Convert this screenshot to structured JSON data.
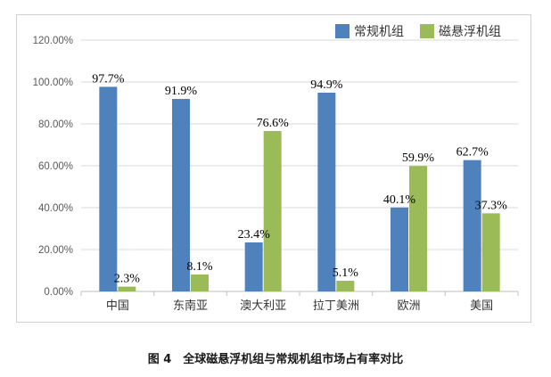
{
  "chart_data": {
    "type": "bar",
    "categories": [
      "中国",
      "东南亚",
      "澳大利亚",
      "拉丁美洲",
      "欧洲",
      "美国"
    ],
    "series": [
      {
        "name": "常规机组",
        "values": [
          97.7,
          91.9,
          23.4,
          94.9,
          40.1,
          62.7
        ],
        "labels": [
          "97.7%",
          "91.9%",
          "23.4%",
          "94.9%",
          "40.1%",
          "62.7%"
        ],
        "color": "#4f81bd"
      },
      {
        "name": "磁悬浮机组",
        "values": [
          2.3,
          8.1,
          76.6,
          5.1,
          59.9,
          37.3
        ],
        "labels": [
          "2.3%",
          "8.1%",
          "76.6%",
          "5.1%",
          "59.9%",
          "37.3%"
        ],
        "color": "#9bbb59"
      }
    ],
    "yticks": [
      "0.00%",
      "20.00%",
      "40.00%",
      "60.00%",
      "80.00%",
      "100.00%",
      "120.00%"
    ],
    "ylim": [
      0,
      120
    ],
    "grid": true,
    "legend_position": "top-right"
  },
  "caption": "图 4　全球磁悬浮机组与常规机组市场占有率对比"
}
